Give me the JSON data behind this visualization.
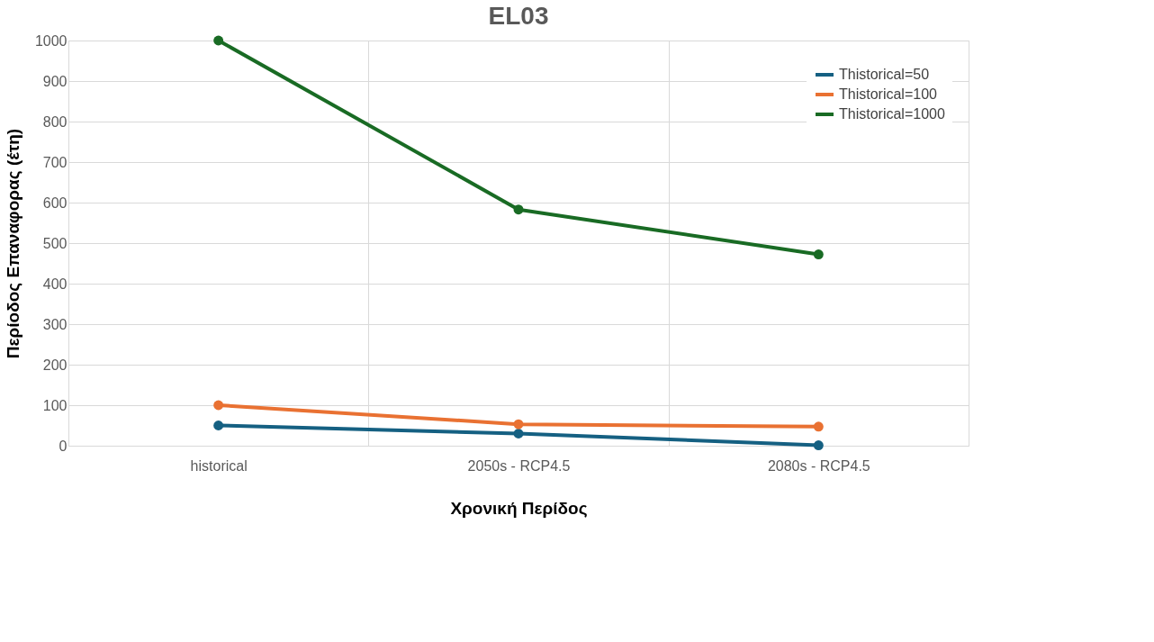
{
  "chart_data": {
    "type": "line",
    "title": "EL03",
    "xlabel": "Χρονική Περίδος",
    "ylabel": "Περίοδος Επαναφορας (έτη)",
    "categories": [
      "historical",
      "2050s - RCP4.5",
      "2080s - RCP4.5"
    ],
    "series": [
      {
        "name": "Thistorical=50",
        "color": "#156082",
        "values": [
          50,
          30,
          1
        ]
      },
      {
        "name": "Thistorical=100",
        "color": "#e97132",
        "values": [
          100,
          53,
          47
        ]
      },
      {
        "name": "Thistorical=1000",
        "color": "#196b24",
        "values": [
          1000,
          583,
          472
        ]
      }
    ],
    "ylim": [
      0,
      1000
    ],
    "yticks": [
      0,
      100,
      200,
      300,
      400,
      500,
      600,
      700,
      800,
      900,
      1000
    ],
    "grid": true,
    "legend": "top right",
    "marker": "circle",
    "line_style": "solid"
  }
}
